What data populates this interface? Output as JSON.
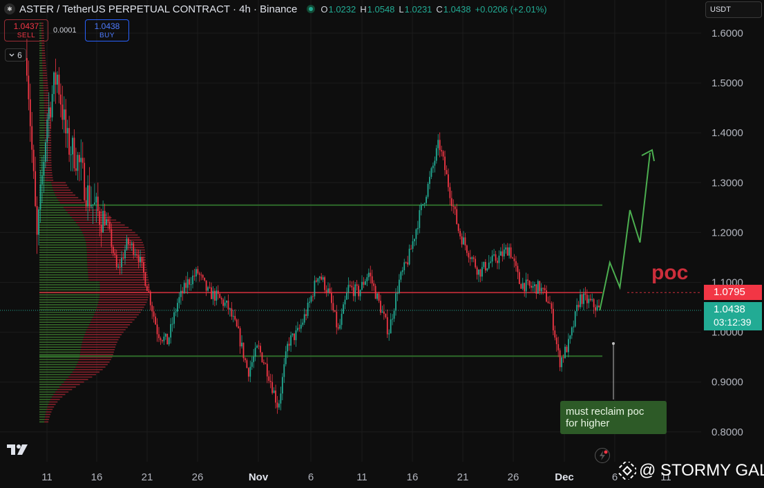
{
  "header": {
    "logo_text": "✱",
    "title": "ASTER / TetherUS PERPETUAL CONTRACT · 4h · Binance",
    "ohlc": {
      "o_label": "O",
      "o": "1.0232",
      "h_label": "H",
      "h": "1.0548",
      "l_label": "L",
      "l": "1.0231",
      "c_label": "C",
      "c": "1.0438"
    },
    "change": "+0.0206 (+2.01%)"
  },
  "trade": {
    "sell_price": "1.0437",
    "sell_label": "SELL",
    "spread": "0.0001",
    "buy_price": "1.0438",
    "buy_label": "BUY"
  },
  "indicators_collapse": {
    "icon": "chevron-down-icon",
    "count": "6"
  },
  "currency_select": "USDT",
  "price_axis": {
    "ticks": [
      "1.6000",
      "1.5000",
      "1.4000",
      "1.3000",
      "1.2000",
      "1.1000",
      "1.0000",
      "0.9000",
      "0.8000"
    ],
    "poc_label": "1.0795",
    "last_price": "1.0438",
    "countdown": "03:12:39"
  },
  "time_axis": {
    "ticks": [
      "11",
      "16",
      "21",
      "26",
      "Nov",
      "6",
      "11",
      "16",
      "21",
      "26",
      "Dec",
      "6",
      "11"
    ],
    "bold": [
      "Nov",
      "Dec"
    ]
  },
  "annotations": {
    "poc_text": "poc",
    "note_line1": "must reclaim poc",
    "note_line2": "for higher"
  },
  "watermark": "@ STORMY GAL",
  "colors": {
    "up": "#22ab94",
    "down": "#f23645",
    "bg": "#0e0e0e",
    "range_line": "#2e6b2a",
    "poc_line": "#cc2e3b",
    "arrow": "#4caf50",
    "grid": "#1c1c1c"
  },
  "chart_data": {
    "type": "candlestick",
    "symbol": "ASTER / TetherUS PERPETUAL CONTRACT",
    "interval": "4h",
    "exchange": "Binance",
    "ylim": [
      0.75,
      1.65
    ],
    "x_range_days": [
      "Oct 9",
      "Dec 11"
    ],
    "levels": [
      {
        "name": "range-high",
        "value": 1.255
      },
      {
        "name": "poc",
        "value": 1.0795
      },
      {
        "name": "range-low",
        "value": 0.952
      }
    ],
    "price_path": [
      [
        "Oct 9",
        1.55
      ],
      [
        "Oct 10",
        1.18
      ],
      [
        "Oct 11",
        1.43
      ],
      [
        "Oct 12",
        1.52
      ],
      [
        "Oct 13",
        1.38
      ],
      [
        "Oct 14",
        1.35
      ],
      [
        "Oct 15",
        1.28
      ],
      [
        "Oct 16",
        1.24
      ],
      [
        "Oct 17",
        1.22
      ],
      [
        "Oct 18",
        1.12
      ],
      [
        "Oct 19",
        1.18
      ],
      [
        "Oct 20",
        1.16
      ],
      [
        "Oct 21",
        1.09
      ],
      [
        "Oct 22",
        1.0
      ],
      [
        "Oct 23",
        0.98
      ],
      [
        "Oct 24",
        1.06
      ],
      [
        "Oct 25",
        1.1
      ],
      [
        "Oct 26",
        1.12
      ],
      [
        "Oct 27",
        1.08
      ],
      [
        "Oct 28",
        1.07
      ],
      [
        "Oct 29",
        1.05
      ],
      [
        "Oct 30",
        1.0
      ],
      [
        "Oct 31",
        0.92
      ],
      [
        "Nov 1",
        0.97
      ],
      [
        "Nov 2",
        0.92
      ],
      [
        "Nov 3",
        0.85
      ],
      [
        "Nov 4",
        0.98
      ],
      [
        "Nov 5",
        1.0
      ],
      [
        "Nov 6",
        1.05
      ],
      [
        "Nov 7",
        1.12
      ],
      [
        "Nov 8",
        1.08
      ],
      [
        "Nov 9",
        1.0
      ],
      [
        "Nov 10",
        1.09
      ],
      [
        "Nov 11",
        1.08
      ],
      [
        "Nov 12",
        1.12
      ],
      [
        "Nov 13",
        1.06
      ],
      [
        "Nov 14",
        1.0
      ],
      [
        "Nov 15",
        1.1
      ],
      [
        "Nov 16",
        1.15
      ],
      [
        "Nov 17",
        1.23
      ],
      [
        "Nov 18",
        1.3
      ],
      [
        "Nov 19",
        1.38
      ],
      [
        "Nov 20",
        1.29
      ],
      [
        "Nov 21",
        1.2
      ],
      [
        "Nov 22",
        1.16
      ],
      [
        "Nov 23",
        1.12
      ],
      [
        "Nov 24",
        1.14
      ],
      [
        "Nov 25",
        1.15
      ],
      [
        "Nov 26",
        1.17
      ],
      [
        "Nov 27",
        1.1
      ],
      [
        "Nov 28",
        1.09
      ],
      [
        "Nov 29",
        1.09
      ],
      [
        "Nov 30",
        1.06
      ],
      [
        "Dec 1",
        0.94
      ],
      [
        "Dec 2",
        0.98
      ],
      [
        "Dec 3",
        1.07
      ],
      [
        "Dec 4",
        1.06
      ],
      [
        "Dec 5",
        1.044
      ]
    ],
    "last_close": 1.0438,
    "projection": [
      [
        "Dec 6",
        1.14
      ],
      [
        "Dec 7",
        1.09
      ],
      [
        "Dec 8",
        1.245
      ],
      [
        "Dec 9",
        1.18
      ],
      [
        "Dec 10",
        1.36
      ]
    ]
  }
}
